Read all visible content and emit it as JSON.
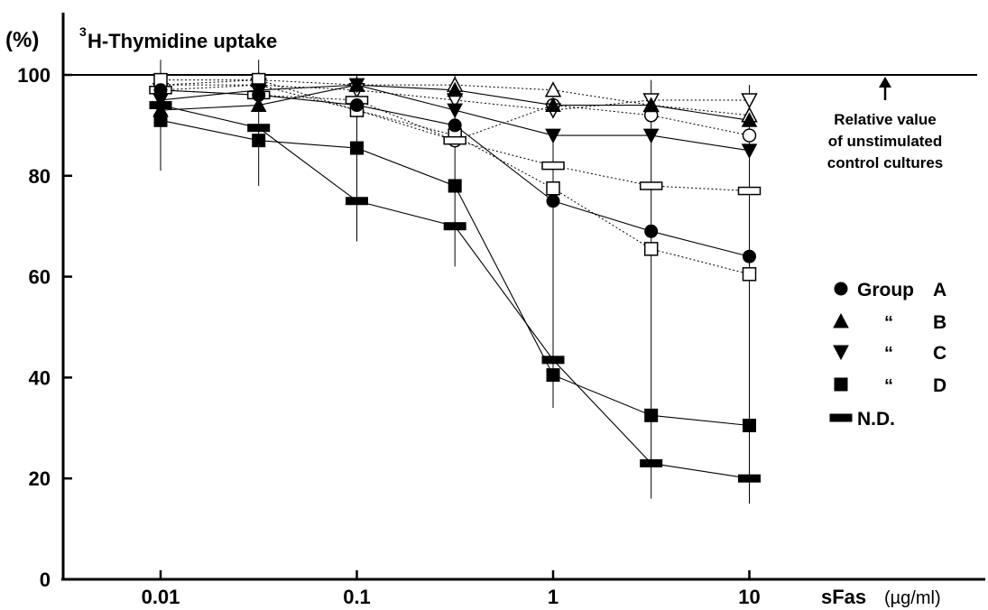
{
  "chart_data": {
    "type": "line",
    "y_unit_label": "(%)",
    "title_super": "3",
    "title": "H-Thymidine uptake",
    "xlabel": "sFas",
    "xlabel_unit": "(µg/ml)",
    "x_scale": "log",
    "xlim": [
      0.0035,
      30
    ],
    "ylim": [
      0,
      100
    ],
    "x_ticks": [
      0.01,
      0.1,
      1,
      10
    ],
    "x_tick_labels": [
      "0.01",
      "0.1",
      "1",
      "10"
    ],
    "y_ticks": [
      0,
      20,
      40,
      60,
      80,
      100
    ],
    "y_tick_labels": [
      "0",
      "20",
      "40",
      "60",
      "80",
      "100"
    ],
    "reference_line": {
      "y": 100,
      "annotation": [
        "Relative value",
        "of unstimulated",
        "control cultures"
      ]
    },
    "x": [
      0.01,
      0.0316,
      0.1,
      0.316,
      1,
      3.16,
      10
    ],
    "series": [
      {
        "marker": "circle",
        "fill": "open",
        "line": "dotted",
        "values": [
          98,
          98,
          93,
          87,
          94,
          92,
          88
        ]
      },
      {
        "marker": "triangle-up",
        "fill": "open",
        "line": "dotted",
        "values": [
          98,
          99,
          98,
          98,
          97,
          94,
          92
        ]
      },
      {
        "marker": "triangle-down",
        "fill": "open",
        "line": "dotted",
        "values": [
          97,
          98,
          97,
          95,
          93,
          95,
          95
        ]
      },
      {
        "marker": "square",
        "fill": "open",
        "line": "dotted",
        "values": [
          99,
          99,
          93,
          88,
          77.5,
          65.5,
          60.5
        ]
      },
      {
        "marker": "dash",
        "fill": "open",
        "line": "dotted",
        "values": [
          97,
          96,
          95,
          87,
          82,
          78,
          77
        ]
      },
      {
        "marker": "circle",
        "fill": "filled",
        "line": "solid",
        "values": [
          97,
          96,
          94,
          90,
          75,
          69,
          64
        ]
      },
      {
        "marker": "triangle-up",
        "fill": "filled",
        "line": "solid",
        "values": [
          93,
          94,
          98,
          97,
          94,
          94,
          91
        ]
      },
      {
        "marker": "triangle-down",
        "fill": "filled",
        "line": "solid",
        "values": [
          95,
          97,
          98,
          93,
          88,
          88,
          85
        ]
      },
      {
        "marker": "square",
        "fill": "filled",
        "line": "solid",
        "values": [
          91,
          87,
          85.5,
          78,
          40.5,
          32.5,
          30.5
        ]
      },
      {
        "marker": "dash",
        "fill": "filled",
        "line": "solid",
        "values": [
          94,
          89.5,
          75,
          70,
          43.5,
          23,
          20
        ]
      }
    ],
    "error_bars": [
      {
        "x": 0.01,
        "low": 81,
        "high": 103
      },
      {
        "x": 0.0316,
        "low": 78,
        "high": 103
      },
      {
        "x": 0.1,
        "low": 67,
        "high": 100
      },
      {
        "x": 0.316,
        "low": 62,
        "high": 100
      },
      {
        "x": 1,
        "low": 34,
        "high": 89
      },
      {
        "x": 3.16,
        "low": 16,
        "high": 99
      },
      {
        "x": 10,
        "low": 15,
        "high": 98
      }
    ],
    "legend": {
      "placement": "right",
      "entries": [
        {
          "marker": "circle",
          "label": "Group",
          "group": "A"
        },
        {
          "marker": "triangle-up",
          "label": "“",
          "group": "B"
        },
        {
          "marker": "triangle-down",
          "label": "“",
          "group": "C"
        },
        {
          "marker": "square",
          "label": "“",
          "group": "D"
        },
        {
          "marker": "dash",
          "label": "N.D.",
          "group": ""
        }
      ]
    }
  }
}
